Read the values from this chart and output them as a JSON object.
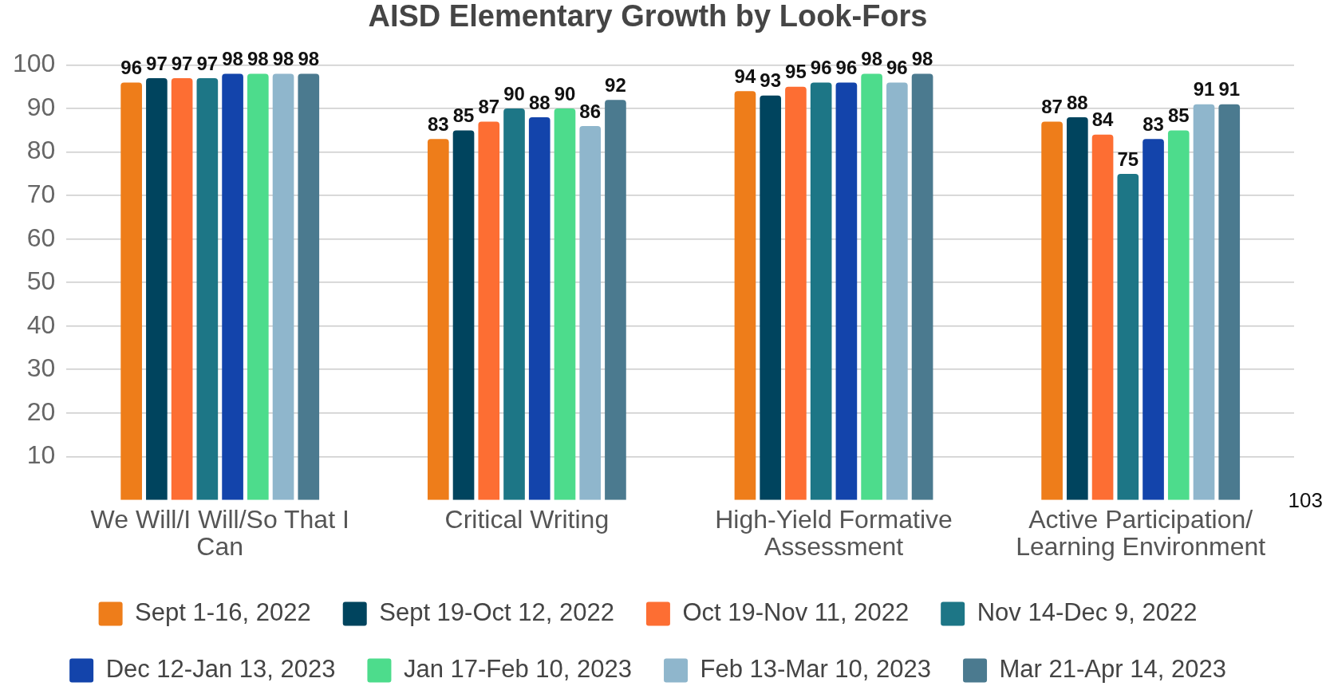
{
  "chart_data": {
    "type": "bar",
    "title": "AISD Elementary Growth by Look-Fors",
    "categories": [
      "We Will/I Will/So That I Can",
      "Critical Writing",
      "High-Yield Formative Assessment",
      "Active Participation/ Learning Environment"
    ],
    "series": [
      {
        "name": "Sept 1-16, 2022",
        "color": "#ee7d1a",
        "values": [
          96,
          83,
          94,
          87
        ]
      },
      {
        "name": "Sept 19-Oct 12, 2022",
        "color": "#00445e",
        "values": [
          97,
          85,
          93,
          88
        ]
      },
      {
        "name": "Oct 19-Nov 11, 2022",
        "color": "#fd6e33",
        "values": [
          97,
          87,
          95,
          84
        ]
      },
      {
        "name": "Nov 14-Dec 9, 2022",
        "color": "#1d7686",
        "values": [
          97,
          90,
          96,
          75
        ]
      },
      {
        "name": "Dec 12-Jan 13, 2023",
        "color": "#1344ab",
        "values": [
          98,
          88,
          96,
          83
        ]
      },
      {
        "name": "Jan 17-Feb 10, 2023",
        "color": "#4ddc8c",
        "values": [
          98,
          90,
          98,
          85
        ]
      },
      {
        "name": "Feb 13-Mar 10, 2023",
        "color": "#8fb6cc",
        "values": [
          98,
          86,
          96,
          91
        ]
      },
      {
        "name": "Mar 21-Apr 14, 2023",
        "color": "#4b7a8f",
        "values": [
          98,
          92,
          98,
          91
        ]
      }
    ],
    "ylim": [
      0,
      100
    ],
    "yticks": [
      10,
      20,
      30,
      40,
      50,
      60,
      70,
      80,
      90,
      100
    ],
    "grid": "y",
    "legend": "bottom",
    "data_labels": true,
    "annotations": [
      "103"
    ]
  }
}
